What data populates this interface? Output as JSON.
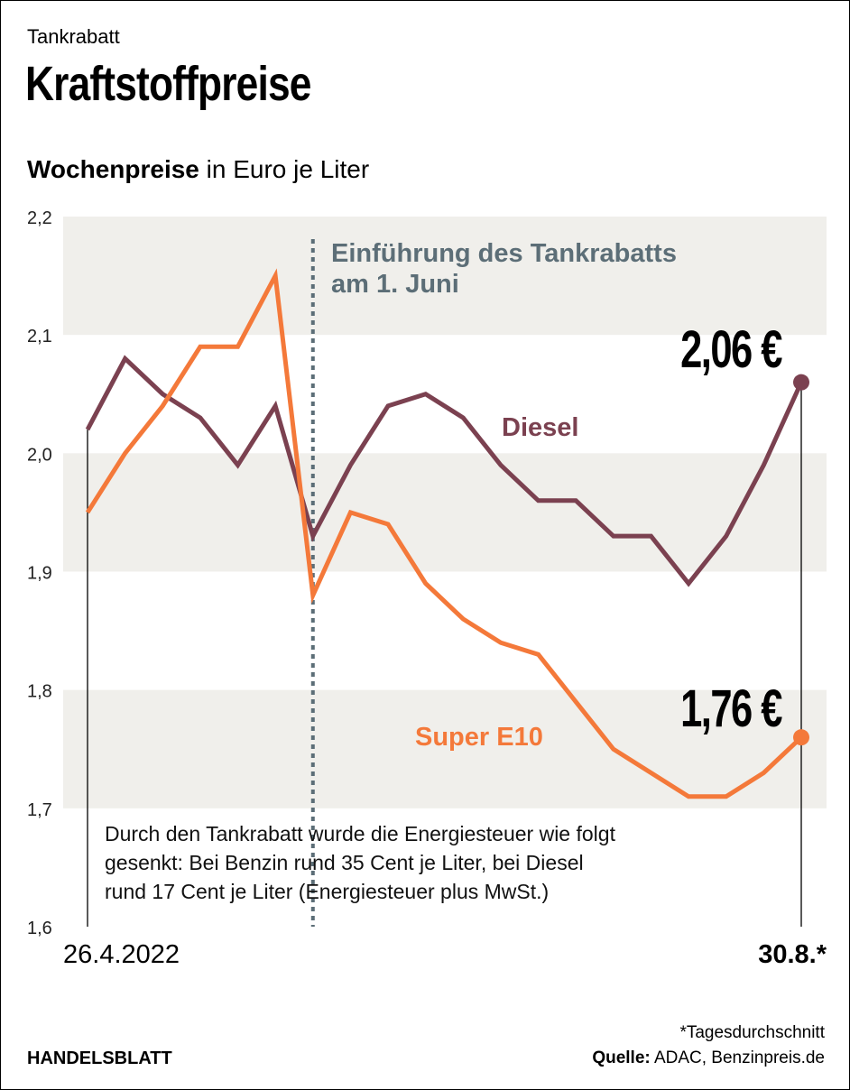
{
  "kicker": "Tankrabatt",
  "title": "Kraftstoffpreise",
  "subtitle_bold": "Wochenpreise",
  "subtitle_rest": " in Euro je Liter",
  "footer": {
    "brand": "HANDELSBLATT",
    "footnote": "*Tagesdurchschnitt",
    "source_label": "Quelle:",
    "source": " ADAC, Benzinpreis.de"
  },
  "chart_data": {
    "type": "line",
    "ylim": [
      1.6,
      2.2
    ],
    "yticks": [
      "2,2",
      "2,1",
      "2,0",
      "1,9",
      "1,8",
      "1,7",
      "1,6"
    ],
    "ytick_values": [
      2.2,
      2.1,
      2.0,
      1.9,
      1.8,
      1.7,
      1.6
    ],
    "x_start_label": "26.4.2022",
    "x_end_label": "30.8.*",
    "grid": "alternating bands",
    "series": [
      {
        "name": "Diesel",
        "color": "#7b4150",
        "end_label": "2,06 €",
        "values": [
          2.02,
          2.08,
          2.05,
          2.03,
          1.99,
          2.04,
          1.93,
          1.99,
          2.04,
          2.05,
          2.03,
          1.99,
          1.96,
          1.96,
          1.93,
          1.93,
          1.89,
          1.93,
          1.99,
          2.06
        ]
      },
      {
        "name": "Super E10",
        "color": "#f4793a",
        "end_label": "1,76 €",
        "values": [
          1.95,
          2.0,
          2.04,
          2.09,
          2.09,
          2.15,
          1.88,
          1.95,
          1.94,
          1.89,
          1.86,
          1.84,
          1.83,
          1.79,
          1.75,
          1.73,
          1.71,
          1.71,
          1.73,
          1.76
        ]
      }
    ],
    "event_index": 6,
    "event_label_lines": [
      "Einführung des Tankrabatts",
      "am 1. Juni"
    ],
    "event_color": "#5c6e77",
    "note_lines": [
      "Durch den Tankrabatt wurde die Energiesteuer wie folgt",
      "gesenkt: Bei Benzin rund 35 Cent je Liter, bei Diesel",
      "rund 17 Cent je Liter (Energiesteuer plus MwSt.)"
    ]
  }
}
